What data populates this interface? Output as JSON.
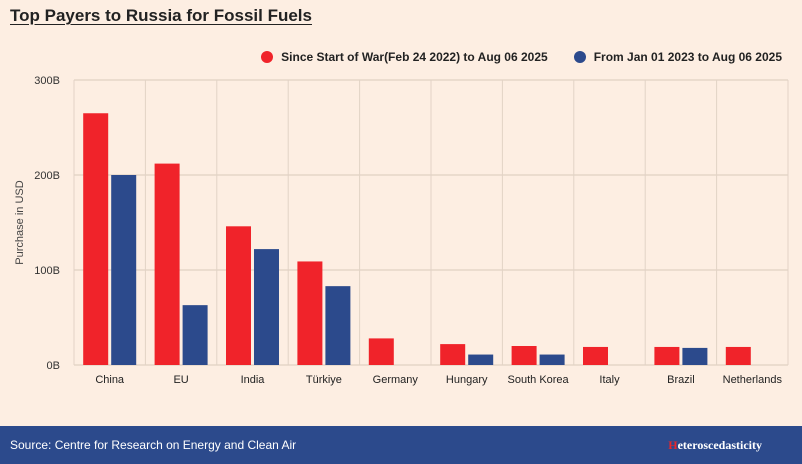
{
  "title": "Top Payers to Russia for Fossil Fuels",
  "legend": [
    {
      "label": "Since Start of War(Feb 24 2022) to Aug 06 2025",
      "color": "#f0232a"
    },
    {
      "label": "From Jan 01 2023 to Aug 06 2025",
      "color": "#2c4a8c"
    }
  ],
  "footer": {
    "source": "Source: Centre for Research on Energy and Clean Air",
    "brand_first": "H",
    "brand_rest": "eteroscedasticity"
  },
  "chart_data": {
    "type": "bar",
    "categories": [
      "China",
      "EU",
      "India",
      "Türkiye",
      "Germany",
      "Hungary",
      "South Korea",
      "Italy",
      "Brazil",
      "Netherlands"
    ],
    "series": [
      {
        "name": "Since Start of War(Feb 24 2022) to Aug 06 2025",
        "color": "#f0232a",
        "values": [
          265,
          212,
          146,
          109,
          28,
          22,
          20,
          19,
          19,
          19
        ]
      },
      {
        "name": "From Jan 01 2023 to Aug 06 2025",
        "color": "#2c4a8c",
        "values": [
          200,
          63,
          122,
          83,
          null,
          11,
          11,
          null,
          18,
          null
        ]
      }
    ],
    "ylabel": "Purchase in USD",
    "yticks": [
      0,
      100,
      200,
      300
    ],
    "ytick_labels": [
      "0B",
      "100B",
      "200B",
      "300B"
    ],
    "ylim": [
      0,
      300
    ],
    "grid": true,
    "legend_position": "top-right"
  }
}
